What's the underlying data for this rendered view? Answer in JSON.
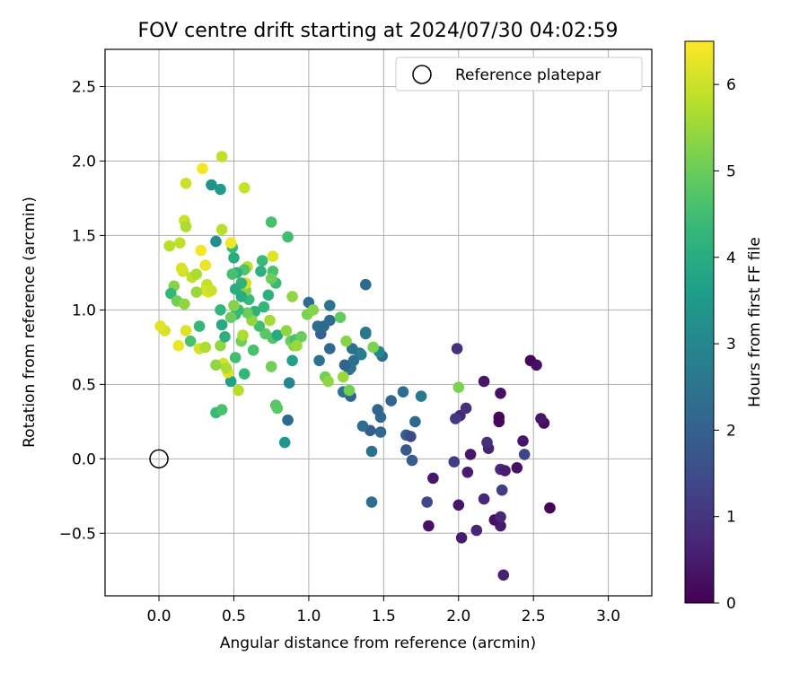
{
  "chart_data": {
    "type": "scatter",
    "title": "FOV centre drift starting at 2024/07/30 04:02:59",
    "xlabel": "Angular distance from reference (arcmin)",
    "ylabel": "Rotation from reference (arcmin)",
    "xlim": [
      -0.36,
      3.29
    ],
    "ylim": [
      -0.92,
      2.75
    ],
    "xticks": [
      "0.0",
      "0.5",
      "1.0",
      "1.5",
      "2.0",
      "2.5",
      "3.0"
    ],
    "xtick_values": [
      0,
      0.5,
      1.0,
      1.5,
      2.0,
      2.5,
      3.0
    ],
    "yticks": [
      "−0.5",
      "0.0",
      "0.5",
      "1.0",
      "1.5",
      "2.0",
      "2.5"
    ],
    "ytick_values": [
      -0.5,
      0,
      0.5,
      1.0,
      1.5,
      2.0,
      2.5
    ],
    "grid": true,
    "legend": {
      "position": "top-right",
      "entries": [
        "Reference platepar"
      ]
    },
    "reference": {
      "x": 0,
      "y": 0
    },
    "colorbar": {
      "label": "Hours from first FF file",
      "colormap": "viridis",
      "range": [
        0,
        6.5
      ],
      "ticks": [
        "0",
        "1",
        "2",
        "3",
        "4",
        "5",
        "6"
      ],
      "tick_values": [
        0,
        1,
        2,
        3,
        4,
        5,
        6
      ]
    },
    "series": [
      {
        "points": [
          [
            2.3,
            -0.78,
            0.6
          ],
          [
            2.12,
            -0.48,
            0.7
          ],
          [
            2.02,
            -0.53,
            0.5
          ],
          [
            1.8,
            -0.45,
            0.3
          ],
          [
            2.28,
            -0.45,
            0.5
          ],
          [
            2.24,
            -0.41,
            0.3
          ],
          [
            2.28,
            -0.39,
            0.7
          ],
          [
            2.17,
            -0.27,
            0.7
          ],
          [
            1.79,
            -0.29,
            1.4
          ],
          [
            2.0,
            -0.31,
            0.4
          ],
          [
            2.29,
            -0.21,
            1.2
          ],
          [
            2.61,
            -0.33,
            0.1
          ],
          [
            1.83,
            -0.13,
            0.4
          ],
          [
            2.06,
            -0.09,
            0.5
          ],
          [
            2.28,
            -0.07,
            0.8
          ],
          [
            2.31,
            -0.08,
            0.5
          ],
          [
            2.39,
            -0.06,
            0.3
          ],
          [
            1.97,
            -0.02,
            1.2
          ],
          [
            2.08,
            0.03,
            0.4
          ],
          [
            2.2,
            0.07,
            0.6
          ],
          [
            2.19,
            0.11,
            0.9
          ],
          [
            2.44,
            0.03,
            1.3
          ],
          [
            2.43,
            0.12,
            0.4
          ],
          [
            2.27,
            0.25,
            0.2
          ],
          [
            2.27,
            0.28,
            0.1
          ],
          [
            2.01,
            0.29,
            0.7
          ],
          [
            1.98,
            0.27,
            1.1
          ],
          [
            2.05,
            0.34,
            0.9
          ],
          [
            2.57,
            0.24,
            0.2
          ],
          [
            2.55,
            0.27,
            0.4
          ],
          [
            2.28,
            0.44,
            0.3
          ],
          [
            2.17,
            0.52,
            0.4
          ],
          [
            1.99,
            0.74,
            0.9
          ],
          [
            2.48,
            0.66,
            0.1
          ],
          [
            2.52,
            0.63,
            0.3
          ],
          [
            1.65,
            0.06,
            1.8
          ],
          [
            1.69,
            -0.01,
            1.9
          ],
          [
            1.65,
            0.16,
            1.9
          ],
          [
            1.68,
            0.15,
            1.5
          ],
          [
            1.71,
            0.25,
            2.2
          ],
          [
            1.48,
            0.28,
            2.2
          ],
          [
            1.46,
            0.33,
            2.1
          ],
          [
            1.48,
            0.18,
            2.2
          ],
          [
            1.41,
            0.19,
            1.9
          ],
          [
            1.42,
            0.05,
            2.4
          ],
          [
            1.42,
            -0.29,
            2.4
          ],
          [
            1.36,
            0.22,
            2.3
          ],
          [
            1.28,
            0.42,
            2.1
          ],
          [
            1.27,
            0.6,
            2.2
          ],
          [
            1.23,
            0.45,
            2.5
          ],
          [
            1.28,
            0.61,
            2.5
          ],
          [
            1.34,
            0.71,
            2.7
          ],
          [
            1.35,
            0.7,
            2.8
          ],
          [
            1.3,
            0.66,
            2.4
          ],
          [
            1.24,
            0.63,
            2.1
          ],
          [
            1.29,
            0.74,
            2.4
          ],
          [
            1.14,
            0.74,
            2.2
          ],
          [
            1.07,
            0.66,
            2.5
          ],
          [
            1.08,
            0.84,
            2.0
          ],
          [
            1.06,
            0.89,
            2.3
          ],
          [
            1.1,
            0.89,
            2.2
          ],
          [
            1.14,
            0.93,
            2.3
          ],
          [
            1.14,
            1.03,
            2.5
          ],
          [
            1.0,
            1.05,
            2.3
          ],
          [
            1.38,
            0.84,
            2.6
          ],
          [
            1.38,
            0.85,
            2.6
          ],
          [
            1.38,
            1.17,
            2.2
          ],
          [
            1.49,
            0.69,
            2.3
          ],
          [
            1.47,
            0.72,
            3.0
          ],
          [
            1.55,
            0.39,
            2.1
          ],
          [
            1.63,
            0.45,
            2.3
          ],
          [
            1.75,
            0.42,
            2.6
          ],
          [
            1.43,
            0.75,
            5.2
          ],
          [
            2.0,
            0.48,
            5.2
          ],
          [
            0.84,
            0.11,
            3.4
          ],
          [
            0.86,
            0.26,
            2.2
          ],
          [
            0.87,
            0.51,
            3.0
          ],
          [
            0.89,
            0.66,
            3.7
          ],
          [
            0.78,
            0.36,
            4.8
          ],
          [
            0.79,
            0.34,
            4.8
          ],
          [
            0.75,
            0.62,
            5.1
          ],
          [
            0.76,
            0.81,
            4.7
          ],
          [
            0.79,
            0.83,
            3.9
          ],
          [
            0.85,
            0.86,
            5.4
          ],
          [
            0.88,
            0.79,
            5.0
          ],
          [
            0.9,
            0.76,
            5.3
          ],
          [
            0.91,
            0.8,
            4.6
          ],
          [
            0.95,
            0.82,
            5.0
          ],
          [
            0.92,
            0.76,
            5.5
          ],
          [
            0.99,
            0.97,
            5.2
          ],
          [
            1.03,
            1.0,
            5.3
          ],
          [
            1.11,
            0.55,
            5.1
          ],
          [
            1.13,
            0.52,
            5.4
          ],
          [
            1.21,
            0.95,
            4.9
          ],
          [
            1.23,
            0.55,
            5.5
          ],
          [
            1.25,
            0.79,
            5.3
          ],
          [
            1.27,
            0.46,
            5.1
          ],
          [
            0.89,
            1.09,
            5.4
          ],
          [
            0.86,
            1.49,
            4.5
          ],
          [
            0.75,
            1.59,
            4.6
          ],
          [
            0.76,
            1.26,
            4.6
          ],
          [
            0.78,
            1.18,
            4.4
          ],
          [
            0.73,
            1.1,
            4.1
          ],
          [
            0.7,
            1.02,
            4.3
          ],
          [
            0.68,
            1.26,
            4.1
          ],
          [
            0.69,
            1.33,
            4.4
          ],
          [
            0.76,
            1.36,
            6.2
          ],
          [
            0.75,
            1.21,
            5.0
          ],
          [
            0.74,
            0.93,
            5.6
          ],
          [
            0.71,
            0.84,
            4.8
          ],
          [
            0.67,
            0.89,
            4.5
          ],
          [
            0.64,
            0.99,
            4.2
          ],
          [
            0.62,
            0.93,
            5.4
          ],
          [
            0.63,
            0.73,
            4.6
          ],
          [
            0.59,
            0.98,
            5.0
          ],
          [
            0.6,
            1.07,
            4.4
          ],
          [
            0.58,
            1.13,
            5.3
          ],
          [
            0.58,
            1.18,
            6.1
          ],
          [
            0.59,
            1.29,
            5.9
          ],
          [
            0.57,
            1.27,
            4.7
          ],
          [
            0.55,
            1.09,
            4.0
          ],
          [
            0.55,
            1.18,
            4.2
          ],
          [
            0.52,
            1.25,
            4.1
          ],
          [
            0.51,
            1.14,
            4.0
          ],
          [
            0.5,
            1.35,
            4.0
          ],
          [
            0.49,
            1.24,
            4.6
          ],
          [
            0.49,
            1.42,
            4.4
          ],
          [
            0.48,
            1.45,
            6.4
          ],
          [
            0.52,
            1.0,
            4.8
          ],
          [
            0.51,
            0.97,
            4.3
          ],
          [
            0.53,
            1.0,
            4.4
          ],
          [
            0.5,
            1.03,
            5.3
          ],
          [
            0.48,
            0.95,
            5.0
          ],
          [
            0.55,
            0.79,
            5.1
          ],
          [
            0.56,
            0.83,
            5.7
          ],
          [
            0.57,
            0.57,
            4.3
          ],
          [
            0.53,
            0.46,
            5.8
          ],
          [
            0.51,
            0.68,
            4.5
          ],
          [
            0.48,
            0.52,
            3.7
          ],
          [
            0.46,
            0.58,
            6.2
          ],
          [
            0.43,
            0.64,
            6.1
          ],
          [
            0.45,
            0.61,
            5.7
          ],
          [
            0.38,
            0.63,
            5.4
          ],
          [
            0.38,
            0.31,
            4.4
          ],
          [
            0.42,
            0.33,
            4.6
          ],
          [
            0.41,
            0.76,
            5.4
          ],
          [
            0.41,
            1.0,
            4.3
          ],
          [
            0.44,
            0.82,
            4.1
          ],
          [
            0.42,
            0.9,
            3.9
          ],
          [
            0.42,
            1.54,
            5.8
          ],
          [
            0.38,
            1.46,
            3.2
          ],
          [
            0.35,
            1.84,
            3.3
          ],
          [
            0.41,
            1.81,
            3.5
          ],
          [
            0.42,
            2.03,
            5.9
          ],
          [
            0.57,
            1.82,
            6.0
          ],
          [
            0.29,
            1.95,
            6.4
          ],
          [
            0.18,
            1.85,
            6.0
          ],
          [
            0.17,
            1.6,
            6.0
          ],
          [
            0.18,
            1.56,
            5.7
          ],
          [
            0.14,
            1.45,
            5.9
          ],
          [
            0.07,
            1.43,
            5.8
          ],
          [
            0.16,
            1.26,
            6.0
          ],
          [
            0.15,
            1.28,
            6.1
          ],
          [
            0.1,
            1.16,
            5.3
          ],
          [
            0.08,
            1.11,
            4.3
          ],
          [
            0.12,
            1.06,
            5.1
          ],
          [
            0.17,
            1.04,
            5.4
          ],
          [
            0.22,
            1.22,
            5.9
          ],
          [
            0.25,
            1.24,
            5.7
          ],
          [
            0.31,
            1.3,
            6.3
          ],
          [
            0.28,
            1.4,
            6.4
          ],
          [
            0.32,
            1.17,
            5.9
          ],
          [
            0.31,
            1.13,
            6.1
          ],
          [
            0.33,
            1.12,
            6.2
          ],
          [
            0.25,
            1.12,
            5.5
          ],
          [
            0.35,
            1.13,
            6.0
          ],
          [
            0.27,
            0.89,
            4.3
          ],
          [
            0.27,
            0.74,
            6.1
          ],
          [
            0.31,
            0.75,
            5.7
          ],
          [
            0.21,
            0.79,
            4.6
          ],
          [
            0.18,
            0.86,
            6.2
          ],
          [
            0.13,
            0.76,
            6.3
          ],
          [
            0.04,
            0.86,
            6.1
          ],
          [
            0.01,
            0.89,
            6.2
          ]
        ]
      }
    ]
  }
}
